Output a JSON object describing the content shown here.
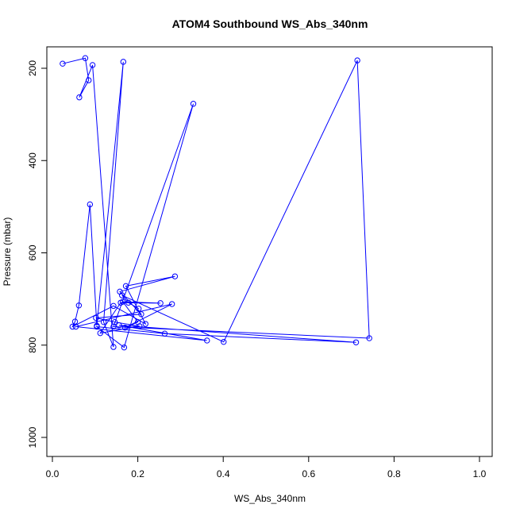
{
  "chart_data": {
    "type": "line",
    "title": "ATOM4 Southbound WS_Abs_340nm",
    "xlabel": "WS_Abs_340nm",
    "ylabel": "Pressure (mbar)",
    "xlim": [
      0,
      1
    ],
    "ylim": [
      1000,
      200
    ],
    "y_reversed": true,
    "grid": false,
    "legend": "none",
    "x_ticks": [
      0.0,
      0.2,
      0.4,
      0.6,
      0.8,
      1.0
    ],
    "x_tick_labels": [
      "0.0",
      "0.2",
      "0.4",
      "0.6",
      "0.8",
      "1.0"
    ],
    "y_ticks": [
      200,
      400,
      600,
      800,
      1000
    ],
    "y_tick_labels": [
      "200",
      "400",
      "600",
      "800",
      "1000"
    ],
    "series": [
      {
        "color": "#0000ff",
        "marker": "open-circle",
        "x": [
          0.024,
          0.077,
          0.085,
          0.063,
          0.094,
          0.143,
          0.12,
          0.166,
          0.104,
          0.088,
          0.062,
          0.053,
          0.047,
          0.143,
          0.218,
          0.172,
          0.287,
          0.158,
          0.208,
          0.102,
          0.146,
          0.204,
          0.112,
          0.16,
          0.253,
          0.165,
          0.2,
          0.17,
          0.28,
          0.055,
          0.362,
          0.156,
          0.711,
          0.263,
          0.104,
          0.168,
          0.33,
          0.143,
          0.742,
          0.714,
          0.401,
          0.163,
          0.178,
          0.202
        ],
        "y": [
          190,
          178,
          226,
          263,
          193,
          804,
          750,
          186,
          758,
          495,
          714,
          749,
          760,
          715,
          754,
          672,
          651,
          684,
          733,
          741,
          750,
          759,
          774,
          708,
          709,
          706,
          750,
          762,
          711,
          760,
          790,
          757,
          794,
          775,
          760,
          805,
          277,
          760,
          785,
          183,
          793,
          692,
          708,
          721
        ]
      }
    ]
  }
}
